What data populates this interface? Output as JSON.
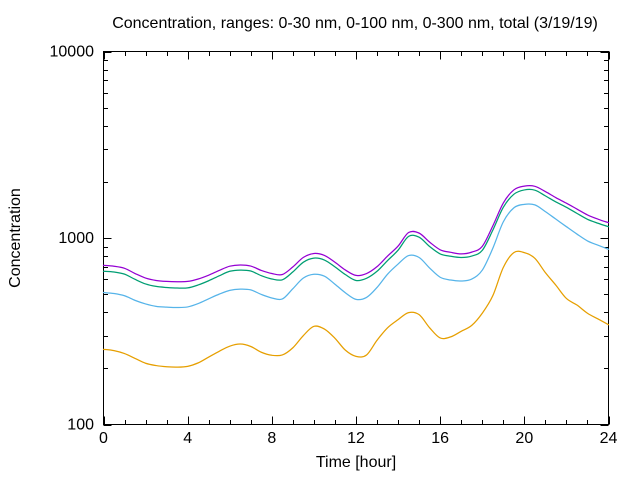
{
  "title": "Concentration, ranges: 0-30 nm, 0-100 nm, 0-300 nm, total (3/19/19)",
  "chart_data": {
    "type": "line",
    "title": "Concentration, ranges: 0-30 nm, 0-100 nm, 0-300 nm, total (3/19/19)",
    "xlabel": "Time [hour]",
    "ylabel": "Concentration",
    "x_range": [
      0,
      24
    ],
    "y_range": [
      100,
      10000
    ],
    "y_scale": "log",
    "xticks": [
      0,
      4,
      8,
      12,
      16,
      20,
      24
    ],
    "x_minor_step": 1,
    "yticks": [
      100,
      1000,
      10000
    ],
    "y_minor_pattern": "log-decades",
    "grid": false,
    "legend": "none",
    "x_step_hours": 0.5,
    "series": [
      {
        "name": "total",
        "color": "#9400d3",
        "values": [
          713,
          706,
          688,
          645,
          610,
          592,
          585,
          583,
          585,
          603,
          632,
          670,
          706,
          717,
          707,
          670,
          645,
          637,
          700,
          787,
          826,
          806,
          741,
          673,
          630,
          645,
          702,
          800,
          905,
          1070,
          1062,
          950,
          865,
          838,
          822,
          840,
          902,
          1160,
          1540,
          1810,
          1897,
          1893,
          1774,
          1645,
          1537,
          1430,
          1330,
          1262,
          1208
        ]
      },
      {
        "name": "0-300 nm",
        "color": "#009e73",
        "values": [
          663,
          657,
          640,
          600,
          567,
          550,
          543,
          539,
          540,
          560,
          590,
          627,
          663,
          673,
          665,
          628,
          603,
          597,
          658,
          742,
          780,
          762,
          700,
          636,
          592,
          608,
          663,
          757,
          860,
          1020,
          1010,
          900,
          822,
          798,
          786,
          800,
          858,
          1100,
          1460,
          1715,
          1810,
          1805,
          1682,
          1560,
          1460,
          1355,
          1260,
          1200,
          1150
        ]
      },
      {
        "name": "0-100 nm",
        "color": "#56b4e9",
        "values": [
          510,
          504,
          490,
          463,
          443,
          430,
          426,
          424,
          427,
          445,
          472,
          500,
          524,
          532,
          527,
          498,
          477,
          471,
          535,
          610,
          639,
          624,
          565,
          508,
          469,
          480,
          543,
          640,
          725,
          805,
          786,
          690,
          616,
          595,
          588,
          602,
          672,
          880,
          1220,
          1450,
          1515,
          1505,
          1385,
          1262,
          1150,
          1050,
          965,
          915,
          870
        ]
      },
      {
        "name": "0-30 nm",
        "color": "#e69f00",
        "values": [
          253,
          249,
          240,
          226,
          213,
          207,
          204,
          203,
          205,
          214,
          230,
          247,
          263,
          270,
          262,
          244,
          235,
          236,
          258,
          300,
          336,
          325,
          290,
          250,
          232,
          236,
          283,
          330,
          365,
          398,
          388,
          330,
          291,
          295,
          316,
          340,
          395,
          490,
          695,
          835,
          835,
          778,
          652,
          558,
          474,
          437,
          395,
          368,
          343
        ]
      }
    ]
  },
  "colors": {
    "axis": "#000000",
    "text": "#000000",
    "background": "#ffffff"
  }
}
